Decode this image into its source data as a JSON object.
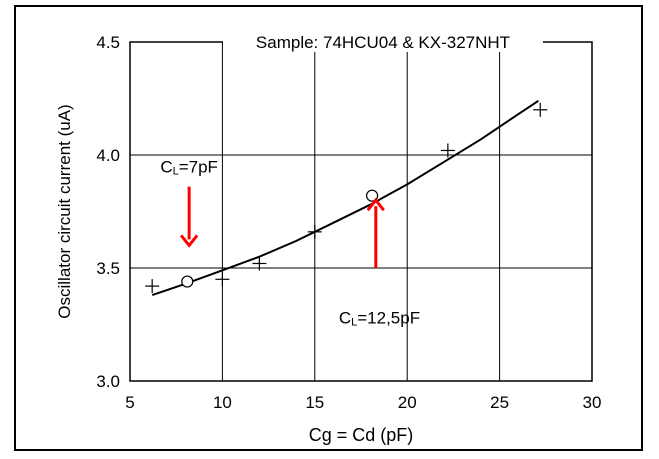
{
  "chart_data": {
    "type": "scatter",
    "title": "Sample: 74HCU04 & KX-327NHT",
    "xlabel": "Cg = Cd (pF)",
    "ylabel": "Oscillator circuit current  (uA)",
    "xlim": [
      5,
      30
    ],
    "ylim": [
      3.0,
      4.5
    ],
    "x_ticks": [
      "5",
      "10",
      "15",
      "20",
      "25",
      "30"
    ],
    "y_ticks": [
      "3.0",
      "3.5",
      "4.0",
      "4.5"
    ],
    "grid": true,
    "series": [
      {
        "marker": "plus",
        "points": [
          [
            6.2,
            3.42
          ],
          [
            10.0,
            3.45
          ],
          [
            12.0,
            3.52
          ],
          [
            15.0,
            3.66
          ],
          [
            22.2,
            4.02
          ],
          [
            27.2,
            4.2
          ]
        ]
      },
      {
        "marker": "circle",
        "points": [
          [
            8.1,
            3.44
          ],
          [
            18.1,
            3.82
          ]
        ]
      },
      {
        "marker": "curve",
        "points": [
          [
            6.2,
            3.38
          ],
          [
            8,
            3.43
          ],
          [
            10,
            3.49
          ],
          [
            12,
            3.55
          ],
          [
            14,
            3.62
          ],
          [
            16,
            3.7
          ],
          [
            18,
            3.78
          ],
          [
            20,
            3.87
          ],
          [
            22,
            3.97
          ],
          [
            24,
            4.07
          ],
          [
            26,
            4.18
          ],
          [
            27.1,
            4.24
          ]
        ]
      }
    ],
    "annotations": [
      {
        "main": "C",
        "sub": "L",
        "rest": "=7pF",
        "x": 8.2,
        "y": 3.95,
        "arrow": "down",
        "arrow_from": [
          8.2,
          3.86
        ],
        "arrow_to": [
          8.2,
          3.6
        ],
        "color": "#ff0000"
      },
      {
        "main": "C",
        "sub": "L",
        "rest": "=12,5pF",
        "x": 18.5,
        "y": 3.28,
        "arrow": "up",
        "arrow_from": [
          18.3,
          3.5
        ],
        "arrow_to": [
          18.3,
          3.8
        ],
        "color": "#ff0000"
      }
    ]
  }
}
